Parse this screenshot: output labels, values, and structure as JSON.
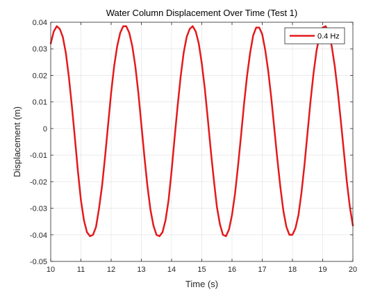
{
  "chart_data": {
    "type": "line",
    "title": "Water Column Displacement Over Time (Test 1)",
    "xlabel": "Time (s)",
    "ylabel": "Displacement (m)",
    "xlim": [
      10,
      20
    ],
    "ylim": [
      -0.05,
      0.04
    ],
    "xticks": [
      10,
      11,
      12,
      13,
      14,
      15,
      16,
      17,
      18,
      19,
      20
    ],
    "xtick_labels": [
      "10",
      "11",
      "12",
      "13",
      "14",
      "15",
      "16",
      "17",
      "18",
      "19",
      "20"
    ],
    "yticks": [
      -0.05,
      -0.04,
      -0.03,
      -0.02,
      -0.01,
      0,
      0.01,
      0.02,
      0.03,
      0.04
    ],
    "ytick_labels": [
      "-0.05",
      "-0.04",
      "-0.03",
      "-0.02",
      "-0.01",
      "0",
      "0.01",
      "0.02",
      "0.03",
      "0.04"
    ],
    "grid": true,
    "legend_position": "top-right",
    "series": [
      {
        "name": "0.4 Hz",
        "color": "#e31a1c",
        "x": [
          10.0,
          10.1,
          10.2,
          10.3,
          10.4,
          10.5,
          10.6,
          10.7,
          10.8,
          10.9,
          11.0,
          11.1,
          11.2,
          11.3,
          11.4,
          11.5,
          11.6,
          11.7,
          11.8,
          11.9,
          12.0,
          12.1,
          12.2,
          12.3,
          12.4,
          12.5,
          12.6,
          12.7,
          12.8,
          12.9,
          13.0,
          13.1,
          13.2,
          13.3,
          13.4,
          13.5,
          13.6,
          13.7,
          13.8,
          13.9,
          14.0,
          14.1,
          14.2,
          14.3,
          14.4,
          14.5,
          14.6,
          14.7,
          14.8,
          14.9,
          15.0,
          15.1,
          15.2,
          15.3,
          15.4,
          15.5,
          15.6,
          15.7,
          15.8,
          15.9,
          16.0,
          16.1,
          16.2,
          16.3,
          16.4,
          16.5,
          16.6,
          16.7,
          16.8,
          16.9,
          17.0,
          17.1,
          17.2,
          17.3,
          17.4,
          17.5,
          17.6,
          17.7,
          17.8,
          17.9,
          18.0,
          18.1,
          18.2,
          18.3,
          18.4,
          18.5,
          18.6,
          18.7,
          18.8,
          18.9,
          19.0,
          19.1,
          19.2,
          19.3,
          19.4,
          19.5,
          19.6,
          19.7,
          19.8,
          19.9,
          20.0
        ],
        "y": [
          0.032,
          0.0365,
          0.0385,
          0.0375,
          0.0345,
          0.0285,
          0.0195,
          0.0085,
          -0.0035,
          -0.016,
          -0.027,
          -0.0345,
          -0.039,
          -0.0405,
          -0.04,
          -0.037,
          -0.03,
          -0.0215,
          -0.0105,
          0.0015,
          0.0135,
          0.0235,
          0.031,
          0.036,
          0.0385,
          0.0385,
          0.036,
          0.031,
          0.0235,
          0.0135,
          0.0015,
          -0.0105,
          -0.0215,
          -0.0305,
          -0.0365,
          -0.04,
          -0.0405,
          -0.039,
          -0.0345,
          -0.027,
          -0.016,
          -0.0035,
          0.0085,
          0.0195,
          0.0285,
          0.0345,
          0.0375,
          0.0385,
          0.0365,
          0.032,
          0.0245,
          0.015,
          0.0035,
          -0.0085,
          -0.0195,
          -0.0295,
          -0.036,
          -0.04,
          -0.0405,
          -0.038,
          -0.0325,
          -0.0245,
          -0.014,
          -0.0025,
          0.0095,
          0.02,
          0.0285,
          0.035,
          0.038,
          0.038,
          0.0355,
          0.0295,
          0.0215,
          0.0115,
          0.0,
          -0.0115,
          -0.022,
          -0.031,
          -0.037,
          -0.04,
          -0.04,
          -0.0375,
          -0.0325,
          -0.024,
          -0.0135,
          -0.0015,
          0.0105,
          0.021,
          0.0295,
          0.035,
          0.038,
          0.0385,
          0.036,
          0.031,
          0.0235,
          0.014,
          0.003,
          -0.0085,
          -0.02,
          -0.0295,
          -0.0365
        ]
      }
    ]
  }
}
